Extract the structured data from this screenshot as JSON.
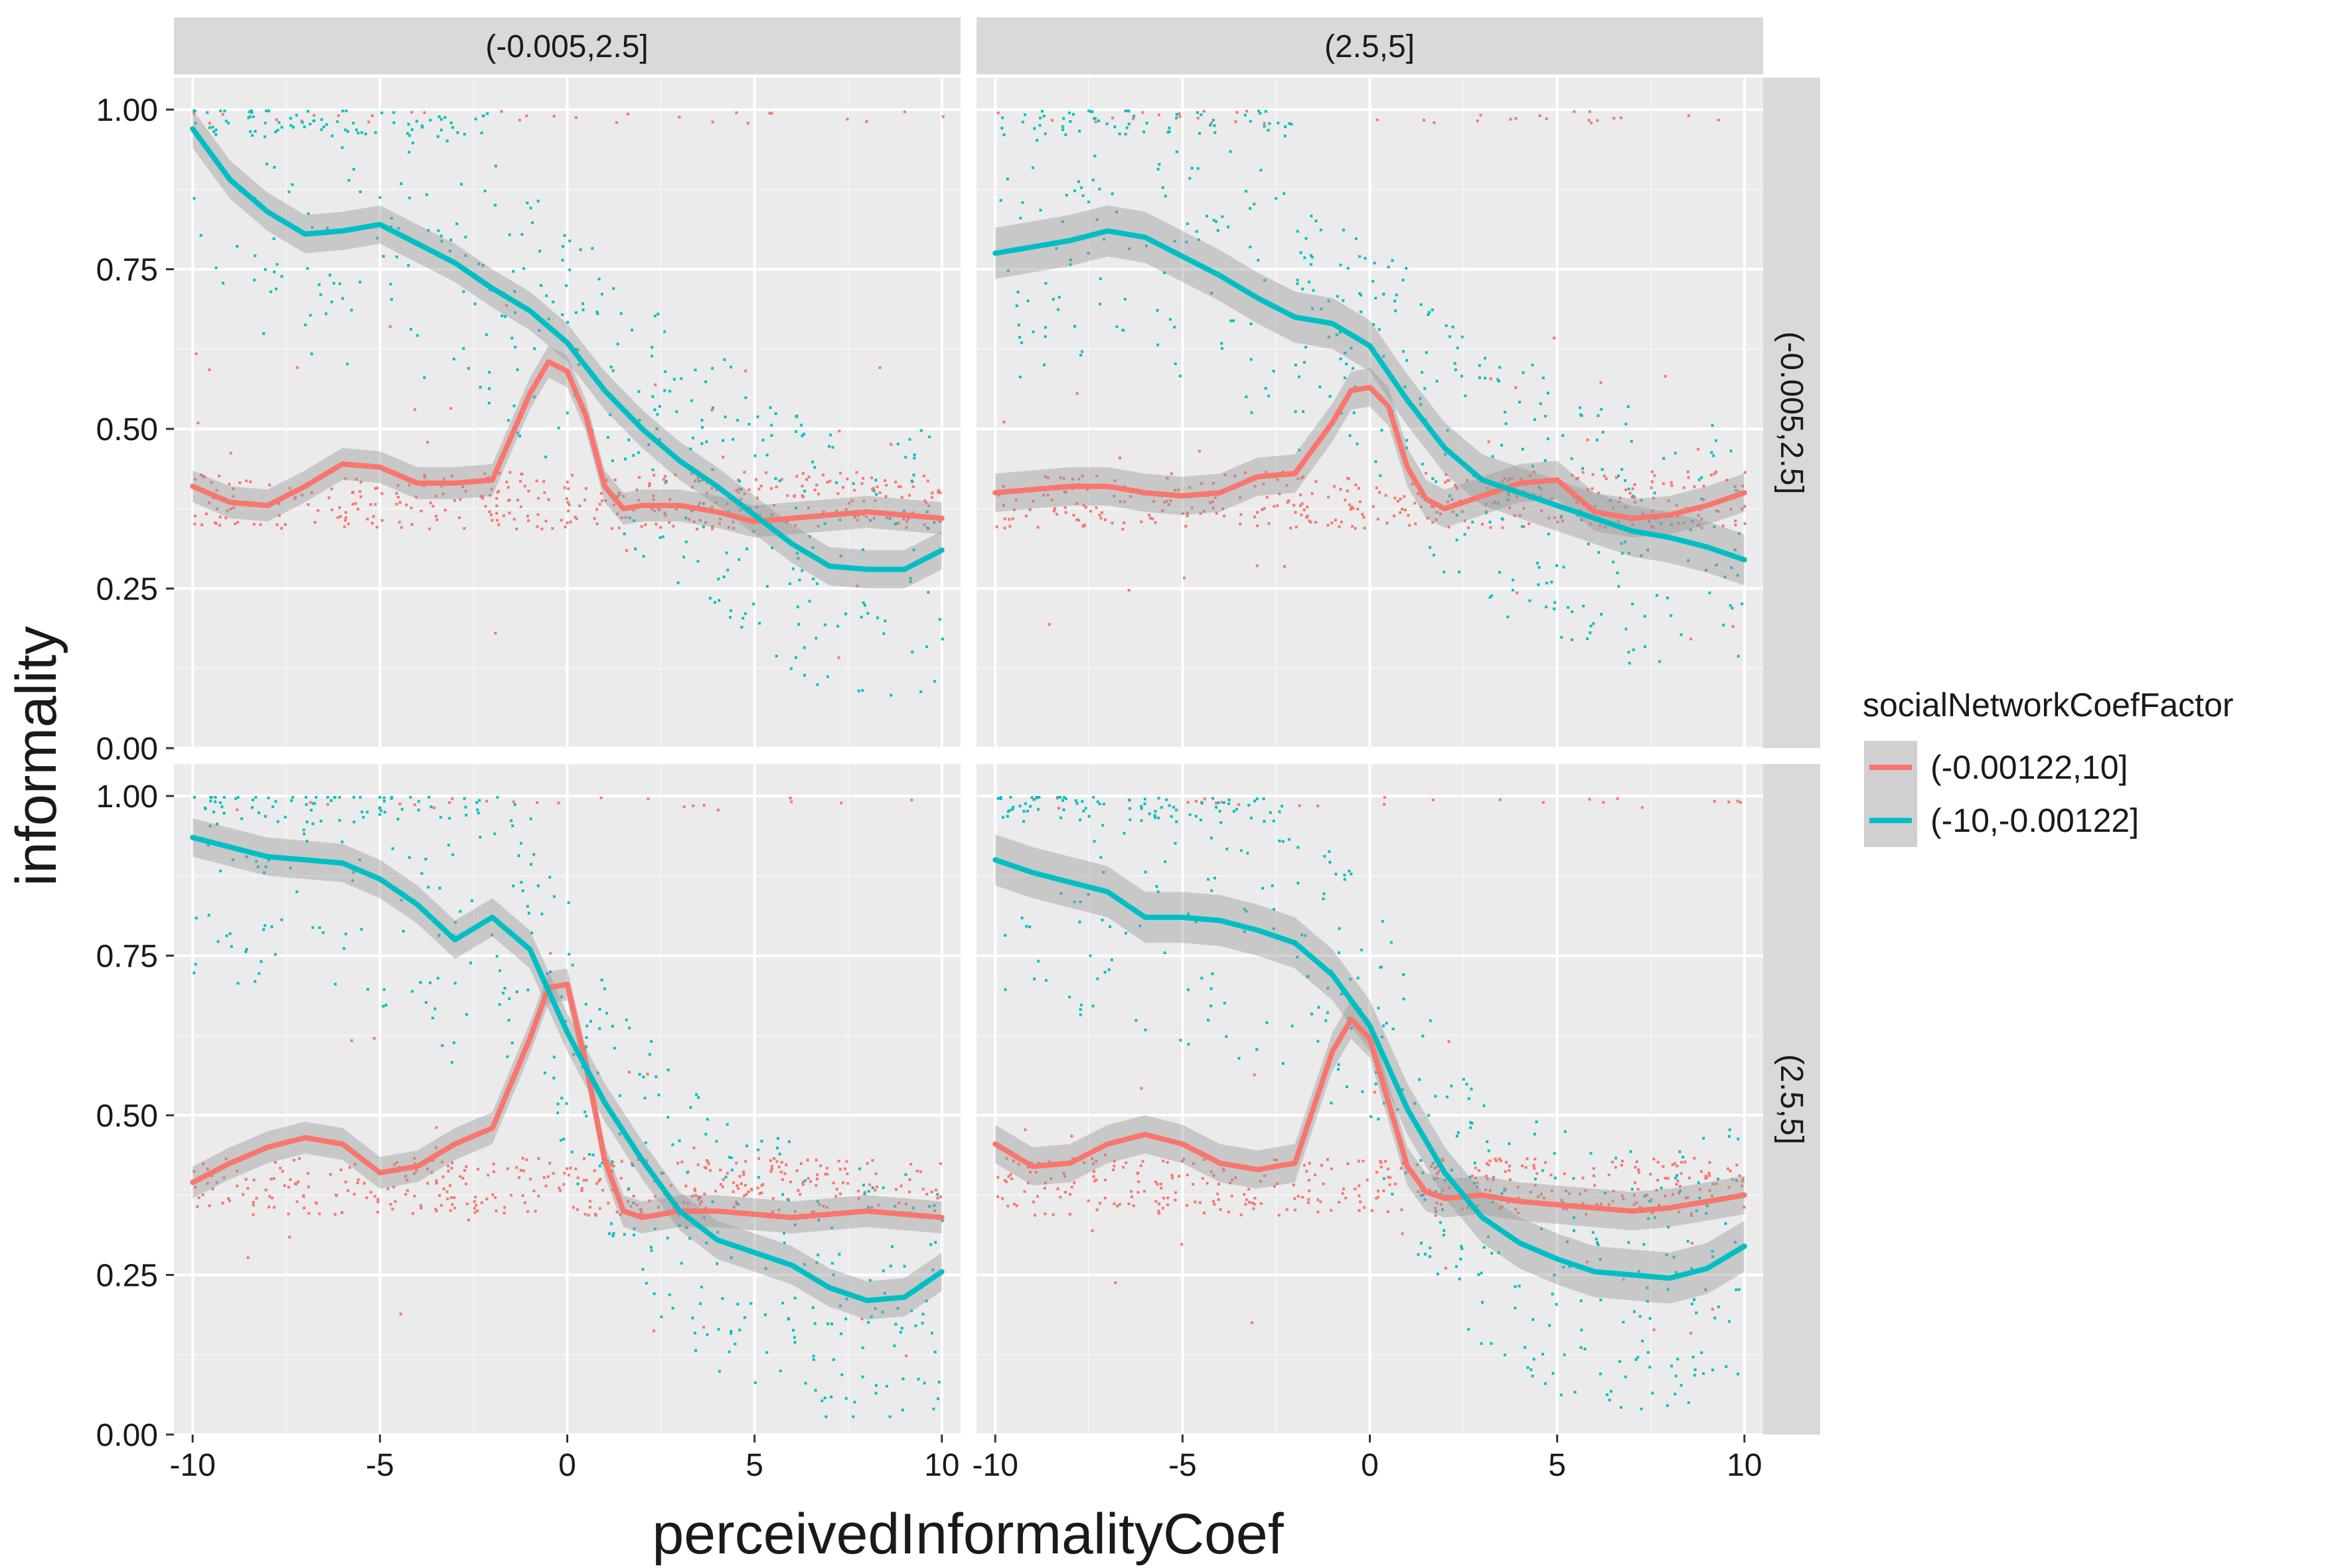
{
  "chart_data": {
    "type": "scatter",
    "xlabel": "perceivedInformalityCoef",
    "ylabel": "informality",
    "xlim": [
      -10.5,
      10.5
    ],
    "ylim": [
      0,
      1.05
    ],
    "x_ticks": [
      -10,
      -5,
      0,
      5,
      10
    ],
    "x_tick_labels": [
      "-10",
      "-5",
      "0",
      "5",
      "10"
    ],
    "y_ticks": [
      0,
      0.25,
      0.5,
      0.75,
      1.0
    ],
    "y_tick_labels": [
      "0.00",
      "0.25",
      "0.50",
      "0.75",
      "1.00"
    ],
    "grid": true,
    "legend": {
      "title": "socialNetworkCoefFactor",
      "placement": "right",
      "entries": [
        {
          "label": "(-0.00122,10]",
          "color": "#F8766D"
        },
        {
          "label": "(-10,-0.00122]",
          "color": "#00BFC4"
        }
      ]
    },
    "facet_col_labels": [
      "(-0.005,2.5]",
      "(2.5,5]"
    ],
    "facet_row_labels": [
      "(-0.005,2.5]",
      "(2.5,5]"
    ],
    "colors": {
      "red": "#F8766D",
      "teal": "#00BFC4",
      "panel": "#EBEBEB",
      "strip": "#D9D9D9",
      "ribbon": "#999999"
    },
    "panels": [
      {
        "col": 0,
        "row": 0,
        "series": [
          {
            "name": "(-0.00122,10]",
            "color": "#F8766D",
            "x": [
              -10,
              -9,
              -8,
              -7,
              -6,
              -5,
              -4,
              -3,
              -2,
              -1,
              -0.5,
              0,
              0.5,
              1,
              1.5,
              2,
              3,
              4,
              5,
              6,
              7,
              8,
              9,
              10
            ],
            "y": [
              0.41,
              0.385,
              0.38,
              0.41,
              0.445,
              0.44,
              0.415,
              0.415,
              0.42,
              0.555,
              0.605,
              0.59,
              0.52,
              0.41,
              0.375,
              0.38,
              0.38,
              0.37,
              0.355,
              0.36,
              0.365,
              0.37,
              0.365,
              0.36
            ],
            "band": 0.025
          },
          {
            "name": "(-10,-0.00122]",
            "color": "#00BFC4",
            "x": [
              -10,
              -9,
              -8,
              -7,
              -6,
              -5,
              -4,
              -3,
              -2,
              -1,
              0,
              1,
              2,
              3,
              4,
              5,
              6,
              7,
              8,
              9,
              10
            ],
            "y": [
              0.97,
              0.89,
              0.84,
              0.805,
              0.81,
              0.82,
              0.79,
              0.76,
              0.72,
              0.685,
              0.635,
              0.56,
              0.5,
              0.45,
              0.41,
              0.365,
              0.32,
              0.285,
              0.28,
              0.28,
              0.31
            ],
            "band": 0.03
          }
        ]
      },
      {
        "col": 1,
        "row": 0,
        "series": [
          {
            "name": "(-0.00122,10]",
            "color": "#F8766D",
            "x": [
              -10,
              -9,
              -8,
              -7,
              -6,
              -5,
              -4,
              -3,
              -2,
              -1,
              -0.5,
              0,
              0.5,
              1,
              1.5,
              2,
              3,
              4,
              5,
              6,
              7,
              8,
              9,
              10
            ],
            "y": [
              0.4,
              0.405,
              0.41,
              0.41,
              0.4,
              0.395,
              0.4,
              0.425,
              0.43,
              0.51,
              0.56,
              0.565,
              0.535,
              0.44,
              0.39,
              0.375,
              0.395,
              0.415,
              0.42,
              0.37,
              0.36,
              0.365,
              0.38,
              0.4
            ],
            "band": 0.03
          },
          {
            "name": "(-10,-0.00122]",
            "color": "#00BFC4",
            "x": [
              -10,
              -9,
              -8,
              -7,
              -6,
              -5,
              -4,
              -3,
              -2,
              -1,
              0,
              1,
              2,
              3,
              4,
              5,
              6,
              7,
              8,
              9,
              10
            ],
            "y": [
              0.775,
              0.785,
              0.795,
              0.81,
              0.8,
              0.77,
              0.74,
              0.705,
              0.675,
              0.665,
              0.63,
              0.545,
              0.47,
              0.42,
              0.4,
              0.38,
              0.36,
              0.34,
              0.33,
              0.315,
              0.295
            ],
            "band": 0.04
          }
        ]
      },
      {
        "col": 0,
        "row": 1,
        "series": [
          {
            "name": "(-0.00122,10]",
            "color": "#F8766D",
            "x": [
              -10,
              -9,
              -8,
              -7,
              -6,
              -5,
              -4,
              -3,
              -2,
              -1,
              -0.5,
              0,
              0.5,
              1,
              1.5,
              2,
              3,
              4,
              5,
              6,
              7,
              8,
              9,
              10
            ],
            "y": [
              0.395,
              0.425,
              0.45,
              0.465,
              0.455,
              0.41,
              0.42,
              0.455,
              0.48,
              0.62,
              0.7,
              0.705,
              0.58,
              0.43,
              0.35,
              0.34,
              0.35,
              0.35,
              0.345,
              0.34,
              0.345,
              0.35,
              0.345,
              0.34
            ],
            "band": 0.025
          },
          {
            "name": "(-10,-0.00122]",
            "color": "#00BFC4",
            "x": [
              -10,
              -9,
              -8,
              -7,
              -6,
              -5,
              -4,
              -3,
              -2,
              -1,
              0,
              1,
              2,
              3,
              4,
              5,
              6,
              7,
              8,
              9,
              10
            ],
            "y": [
              0.935,
              0.92,
              0.905,
              0.9,
              0.895,
              0.87,
              0.83,
              0.775,
              0.81,
              0.76,
              0.63,
              0.52,
              0.43,
              0.35,
              0.305,
              0.285,
              0.265,
              0.23,
              0.21,
              0.215,
              0.255
            ],
            "band": 0.03
          }
        ]
      },
      {
        "col": 1,
        "row": 1,
        "series": [
          {
            "name": "(-0.00122,10]",
            "color": "#F8766D",
            "x": [
              -10,
              -9,
              -8,
              -7,
              -6,
              -5,
              -4,
              -3,
              -2,
              -1,
              -0.5,
              0,
              0.5,
              1,
              1.5,
              2,
              3,
              4,
              5,
              6,
              7,
              8,
              9,
              10
            ],
            "y": [
              0.455,
              0.42,
              0.425,
              0.455,
              0.47,
              0.455,
              0.425,
              0.415,
              0.425,
              0.6,
              0.65,
              0.62,
              0.52,
              0.42,
              0.38,
              0.37,
              0.375,
              0.365,
              0.36,
              0.355,
              0.35,
              0.355,
              0.365,
              0.375
            ],
            "band": 0.03
          },
          {
            "name": "(-10,-0.00122]",
            "color": "#00BFC4",
            "x": [
              -10,
              -9,
              -8,
              -7,
              -6,
              -5,
              -4,
              -3,
              -2,
              -1,
              0,
              1,
              2,
              3,
              4,
              5,
              6,
              7,
              8,
              9,
              10
            ],
            "y": [
              0.9,
              0.88,
              0.865,
              0.85,
              0.81,
              0.81,
              0.805,
              0.79,
              0.77,
              0.72,
              0.64,
              0.51,
              0.41,
              0.34,
              0.3,
              0.275,
              0.255,
              0.25,
              0.245,
              0.26,
              0.295
            ],
            "band": 0.04
          }
        ]
      }
    ]
  }
}
